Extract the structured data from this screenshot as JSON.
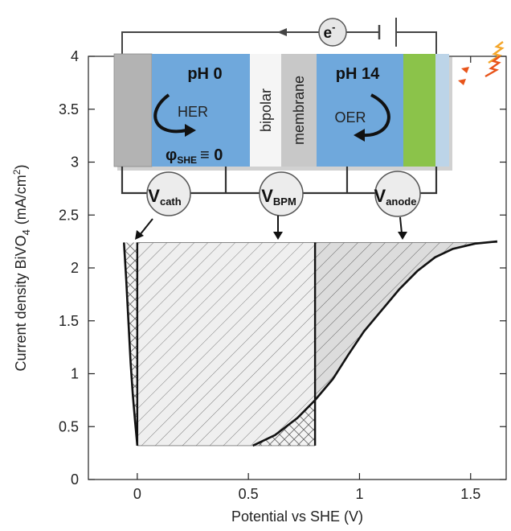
{
  "chart_data": {
    "type": "area",
    "xlabel": "Potential vs SHE (V)",
    "ylabel": "Current density BiVO",
    "ylabel_sub": "4",
    "ylabel_unit": "(mA/cm",
    "ylabel_unit_sup": "2",
    "ylabel_unit_end": ")",
    "xlim": [
      -0.22,
      1.66
    ],
    "ylim": [
      0,
      4
    ],
    "xticks": [
      0,
      0.5,
      1,
      1.5
    ],
    "xtick_labels": [
      "0",
      "0.5",
      "1",
      "1.5"
    ],
    "yticks": [
      0,
      0.5,
      1,
      1.5,
      2,
      2.5,
      3,
      3.5,
      4
    ],
    "ytick_labels": [
      "0",
      "0.5",
      "1",
      "1.5",
      "2",
      "2.5",
      "3",
      "3.5",
      "4"
    ],
    "grid": false,
    "series": [
      {
        "role": "cathode-overpotential",
        "x": [
          -0.06,
          -0.05,
          -0.04,
          -0.03,
          -0.02,
          -0.01,
          0.0
        ],
        "y": [
          2.24,
          1.9,
          1.5,
          1.1,
          0.8,
          0.55,
          0.32
        ]
      },
      {
        "role": "BiVO4-photocurrent",
        "x": [
          0.52,
          0.62,
          0.72,
          0.8,
          0.88,
          0.95,
          1.02,
          1.1,
          1.18,
          1.26,
          1.34,
          1.42,
          1.52,
          1.62
        ],
        "y": [
          0.32,
          0.42,
          0.58,
          0.75,
          0.95,
          1.18,
          1.4,
          1.6,
          1.8,
          1.97,
          2.1,
          2.18,
          2.23,
          2.25
        ]
      }
    ],
    "vlines": [
      {
        "x": 0,
        "y_range": [
          0.32,
          2.24
        ]
      },
      {
        "x": 0.8,
        "y_range": [
          0.32,
          2.24
        ]
      }
    ],
    "region_top": 2.24,
    "region_bottom": 0.32
  },
  "diagram": {
    "electron_label": "e",
    "electron_sup": "-",
    "cathode_ph": "pH 0",
    "cathode_reaction": "HER",
    "reference_phi": "φ",
    "reference_sub": "SHE",
    "reference_eq": "≡ 0",
    "bpm_line1": "bipolar",
    "bpm_line2": "membrane",
    "anode_ph": "pH 14",
    "anode_reaction": "OER",
    "v_cath_main": "V",
    "v_cath_sub": "cath",
    "v_bpm_main": "V",
    "v_bpm_sub": "BPM",
    "v_anode_main": "V",
    "v_anode_sub": "anode"
  },
  "colors": {
    "electrolyte": "#6fa8dc",
    "electrode_gray": "#b3b3b3",
    "photoanode": "#8bc34a",
    "glass": "#bcd4e8",
    "hatch_fill": "#efefef",
    "hatch_line": "#777777",
    "light_ray": "#f0a020"
  }
}
